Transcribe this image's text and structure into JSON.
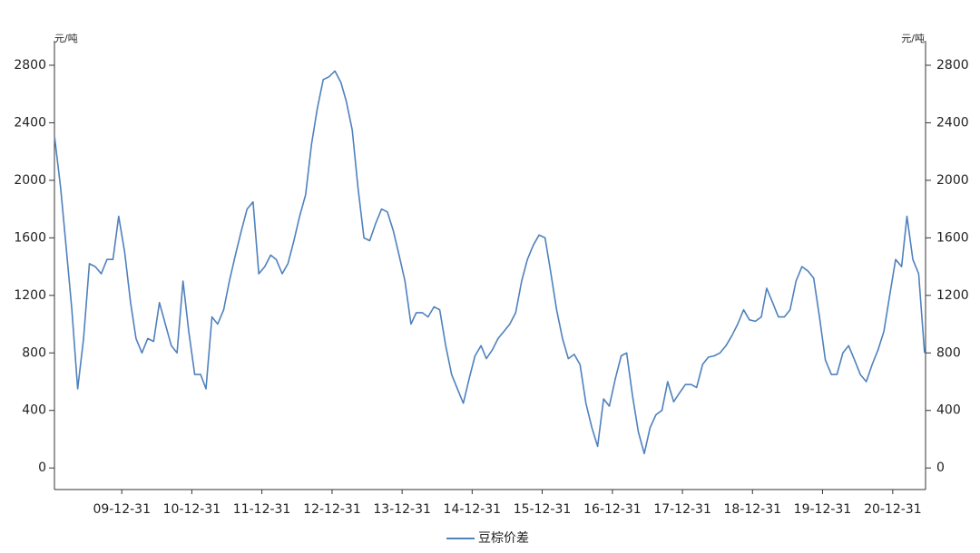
{
  "chart_data": {
    "type": "line",
    "y_label": "元/吨",
    "y2_label": "元/吨",
    "x": [
      "09-01-15",
      "09-02-15",
      "09-03-15",
      "09-04-15",
      "09-05-15",
      "09-06-15",
      "09-07-15",
      "09-08-15",
      "09-09-15",
      "09-10-15",
      "09-11-15",
      "09-12-15",
      "10-01-15",
      "10-02-15",
      "10-03-15",
      "10-04-15",
      "10-05-15",
      "10-06-15",
      "10-07-15",
      "10-08-15",
      "10-09-15",
      "10-10-15",
      "10-11-15",
      "10-12-15",
      "11-01-15",
      "11-02-15",
      "11-03-15",
      "11-04-15",
      "11-05-15",
      "11-06-15",
      "11-07-15",
      "11-08-15",
      "11-09-15",
      "11-10-15",
      "11-11-15",
      "11-12-15",
      "12-01-15",
      "12-02-15",
      "12-03-15",
      "12-04-15",
      "12-05-15",
      "12-06-15",
      "12-07-15",
      "12-08-15",
      "12-09-15",
      "12-10-15",
      "12-11-15",
      "12-12-15",
      "13-01-15",
      "13-02-15",
      "13-03-15",
      "13-04-15",
      "13-05-15",
      "13-06-15",
      "13-07-15",
      "13-08-15",
      "13-09-15",
      "13-10-15",
      "13-11-15",
      "13-12-15",
      "14-01-15",
      "14-02-15",
      "14-03-15",
      "14-04-15",
      "14-05-15",
      "14-06-15",
      "14-07-15",
      "14-08-15",
      "14-09-15",
      "14-10-15",
      "14-11-15",
      "14-12-15",
      "15-01-15",
      "15-02-15",
      "15-03-15",
      "15-04-15",
      "15-05-15",
      "15-06-15",
      "15-07-15",
      "15-08-15",
      "15-09-15",
      "15-10-15",
      "15-11-15",
      "15-12-15",
      "16-01-15",
      "16-02-15",
      "16-03-15",
      "16-04-15",
      "16-05-15",
      "16-06-15",
      "16-07-15",
      "16-08-15",
      "16-09-15",
      "16-10-15",
      "16-11-15",
      "16-12-15",
      "17-01-15",
      "17-02-15",
      "17-03-15",
      "17-04-15",
      "17-05-15",
      "17-06-15",
      "17-07-15",
      "17-08-15",
      "17-09-15",
      "17-10-15",
      "17-11-15",
      "17-12-15",
      "18-01-15",
      "18-02-15",
      "18-03-15",
      "18-04-15",
      "18-05-15",
      "18-06-15",
      "18-07-15",
      "18-08-15",
      "18-09-15",
      "18-10-15",
      "18-11-15",
      "18-12-15",
      "19-01-15",
      "19-02-15",
      "19-03-15",
      "19-04-15",
      "19-05-15",
      "19-06-15",
      "19-07-15",
      "19-08-15",
      "19-09-15",
      "19-10-15",
      "19-11-15",
      "19-12-15",
      "20-01-15",
      "20-02-15",
      "20-03-15",
      "20-04-15",
      "20-05-15",
      "20-06-15",
      "20-07-15",
      "20-08-15",
      "20-09-15",
      "20-10-15",
      "20-11-15",
      "20-12-15",
      "21-01-15",
      "21-02-15",
      "21-03-15",
      "21-04-15",
      "21-05-15",
      "21-06-15"
    ],
    "series": [
      {
        "name": "豆棕价差",
        "color": "#4f81bd",
        "values": [
          2300,
          1950,
          1550,
          1100,
          550,
          900,
          1420,
          1400,
          1350,
          1450,
          1450,
          1750,
          1500,
          1150,
          900,
          800,
          900,
          880,
          1150,
          1000,
          850,
          800,
          1300,
          950,
          650,
          650,
          550,
          1050,
          1000,
          1100,
          1300,
          1480,
          1650,
          1800,
          1850,
          1350,
          1400,
          1480,
          1450,
          1350,
          1420,
          1580,
          1750,
          1900,
          2250,
          2500,
          2700,
          2720,
          2760,
          2680,
          2550,
          2350,
          1950,
          1600,
          1580,
          1700,
          1800,
          1780,
          1650,
          1480,
          1300,
          1000,
          1080,
          1080,
          1050,
          1120,
          1100,
          850,
          650,
          550,
          450,
          620,
          780,
          850,
          760,
          820,
          900,
          950,
          1000,
          1080,
          1300,
          1450,
          1550,
          1620,
          1600,
          1350,
          1100,
          900,
          760,
          790,
          720,
          450,
          280,
          150,
          480,
          430,
          620,
          780,
          800,
          500,
          250,
          100,
          280,
          370,
          400,
          600,
          460,
          520,
          580,
          580,
          560,
          720,
          770,
          780,
          800,
          850,
          920,
          1000,
          1100,
          1030,
          1020,
          1050,
          1250,
          1150,
          1050,
          1050,
          1100,
          1300,
          1400,
          1370,
          1320,
          1050,
          750,
          650,
          650,
          800,
          850,
          750,
          650,
          600,
          720,
          820,
          950,
          1200,
          1450,
          1400,
          1750,
          1450,
          1350,
          800
        ]
      }
    ],
    "xlim": [
      "09-01-14",
      "21-06-20"
    ],
    "xticks": [
      "09-12-31",
      "10-12-31",
      "11-12-31",
      "12-12-31",
      "13-12-31",
      "14-12-31",
      "15-12-31",
      "16-12-31",
      "17-12-31",
      "18-12-31",
      "19-12-31",
      "20-12-31"
    ],
    "ylim": [
      -150,
      2970
    ],
    "yticks": [
      0,
      400,
      800,
      1200,
      1600,
      2000,
      2400,
      2800
    ],
    "y2lim": [
      -150,
      2970
    ],
    "y2ticks": [
      0,
      400,
      800,
      1200,
      1600,
      2000,
      2400,
      2800
    ],
    "legend": "bottom"
  }
}
